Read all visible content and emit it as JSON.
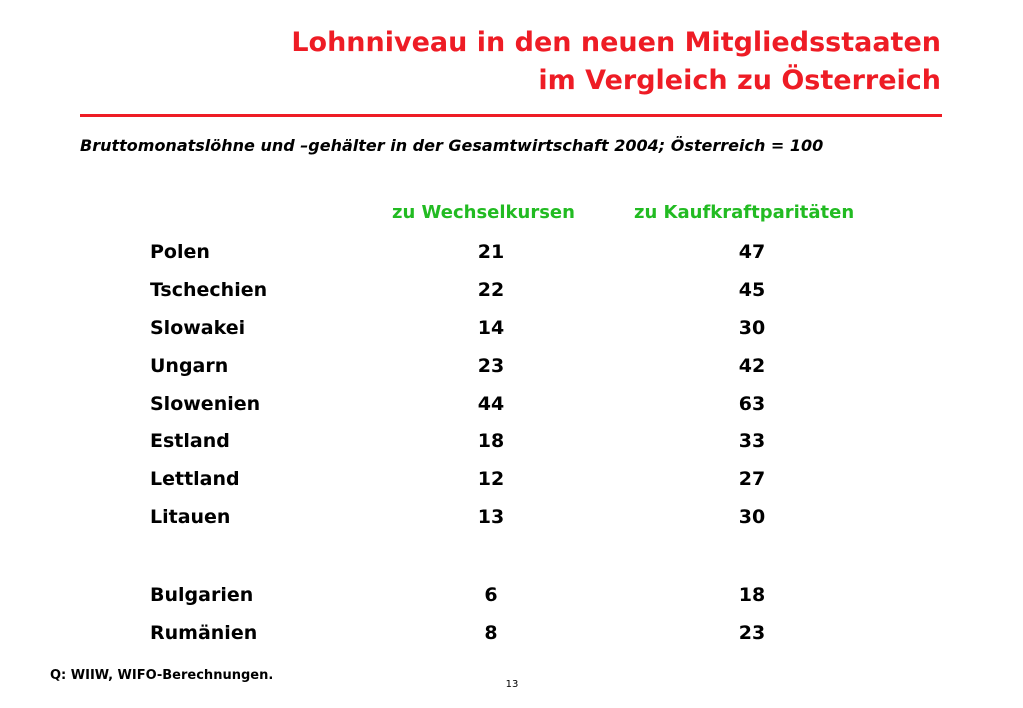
{
  "title": {
    "line1": "Lohnniveau in den neuen Mitgliedsstaaten",
    "line2": "im Vergleich zu Österreich"
  },
  "subtitle": "Bruttomonatslöhne und –gehälter in der Gesamtwirtschaft 2004; Österreich = 100",
  "columns": {
    "col1": "zu Wechselkursen",
    "col2": "zu Kaufkraftparitäten"
  },
  "rows": [
    {
      "country": "Polen",
      "v1": "21",
      "v2": "47"
    },
    {
      "country": "Tschechien",
      "v1": "22",
      "v2": "45"
    },
    {
      "country": "Slowakei",
      "v1": "14",
      "v2": "30"
    },
    {
      "country": "Ungarn",
      "v1": "23",
      "v2": "42"
    },
    {
      "country": "Slowenien",
      "v1": "44",
      "v2": "63"
    },
    {
      "country": "Estland",
      "v1": "18",
      "v2": "33"
    },
    {
      "country": "Lettland",
      "v1": "12",
      "v2": "27"
    },
    {
      "country": "Litauen",
      "v1": "13",
      "v2": "30"
    },
    {
      "country": "Bulgarien",
      "v1": "6",
      "v2": "18"
    },
    {
      "country": "Rumänien",
      "v1": "8",
      "v2": "23"
    }
  ],
  "source": "Q: WIIW, WIFO-Berechnungen.",
  "page_number": "13",
  "colors": {
    "title": "#ee1c25",
    "column_header": "#22bb22"
  }
}
